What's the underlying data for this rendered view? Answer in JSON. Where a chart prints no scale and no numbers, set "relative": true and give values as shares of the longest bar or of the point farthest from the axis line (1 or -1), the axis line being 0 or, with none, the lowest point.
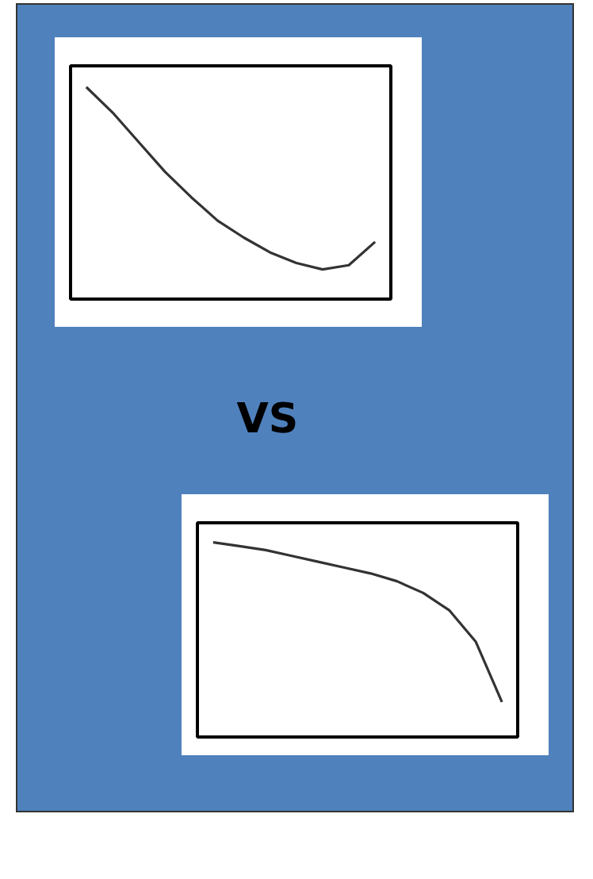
{
  "chart_data": [
    {
      "type": "line",
      "relative": true,
      "categories": [
        null,
        null,
        null,
        null,
        null,
        null,
        null,
        null,
        null,
        null,
        null,
        null
      ],
      "series": [
        {
          "color": "#333333",
          "values": [
            1,
            0.88,
            0.74,
            0.6,
            0.48,
            0.37,
            0.29,
            0.22,
            0.17,
            0.14,
            0.16,
            0.27
          ]
        }
      ],
      "grid": false,
      "marker": "none",
      "line_style": "solid"
    },
    {
      "type": "other",
      "annotations": [
        "VS"
      ]
    },
    {
      "type": "line",
      "relative": true,
      "categories": [
        null,
        null,
        null,
        null,
        null,
        null,
        null,
        null,
        null,
        null,
        null,
        null
      ],
      "series": [
        {
          "color": "#333333",
          "values": [
            1,
            0.98,
            0.96,
            0.93,
            0.9,
            0.87,
            0.84,
            0.8,
            0.74,
            0.65,
            0.49,
            0.18
          ]
        }
      ],
      "grid": false,
      "marker": "none",
      "line_style": "solid"
    }
  ]
}
